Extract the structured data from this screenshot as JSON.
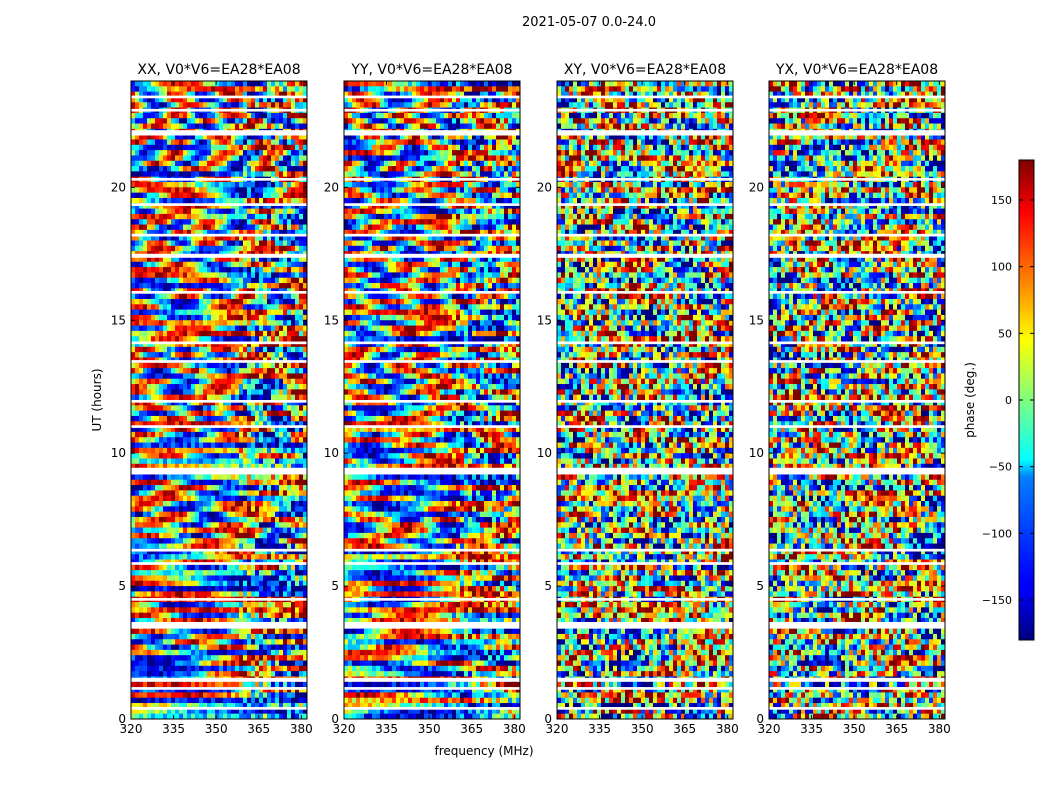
{
  "suptitle": "2021-05-07 0.0-24.0",
  "chart_data": {
    "type": "heatmap",
    "xlabel": "frequency (MHz)",
    "ylabel": "UT (hours)",
    "xlim": [
      320,
      382
    ],
    "ylim": [
      0,
      24
    ],
    "xticks": [
      320,
      335,
      350,
      365,
      380
    ],
    "yticks": [
      0,
      5,
      10,
      15,
      20
    ],
    "panels": [
      {
        "title": "XX, V0*V6=EA28*EA08",
        "structure": "smooth"
      },
      {
        "title": "YY, V0*V6=EA28*EA08",
        "structure": "smooth"
      },
      {
        "title": "XY, V0*V6=EA28*EA08",
        "structure": "noisy"
      },
      {
        "title": "YX, V0*V6=EA28*EA08",
        "structure": "noisy"
      }
    ],
    "gaps_hours": [
      [
        0.35,
        0.45
      ],
      [
        1.1,
        1.2
      ],
      [
        1.4,
        1.55
      ],
      [
        3.4,
        3.65
      ],
      [
        4.45,
        4.55
      ],
      [
        5.8,
        5.9
      ],
      [
        6.3,
        6.4
      ],
      [
        9.2,
        9.45
      ],
      [
        10.95,
        11.05
      ],
      [
        11.9,
        12.0
      ],
      [
        13.4,
        13.5
      ],
      [
        14.1,
        14.2
      ],
      [
        16.0,
        16.1
      ],
      [
        17.35,
        17.5
      ],
      [
        18.15,
        18.25
      ],
      [
        19.3,
        19.4
      ],
      [
        20.25,
        20.35
      ],
      [
        21.95,
        22.15
      ],
      [
        22.85,
        22.95
      ],
      [
        23.35,
        23.45
      ]
    ],
    "colorbar": {
      "label": "phase (deg.)",
      "colormap": "jet",
      "range": [
        -180,
        180
      ],
      "ticks": [
        150,
        100,
        50,
        0,
        -50,
        -100,
        -150
      ],
      "tick_labels": [
        "150",
        "100",
        "50",
        "0",
        "−50",
        "−100",
        "−150"
      ]
    }
  }
}
